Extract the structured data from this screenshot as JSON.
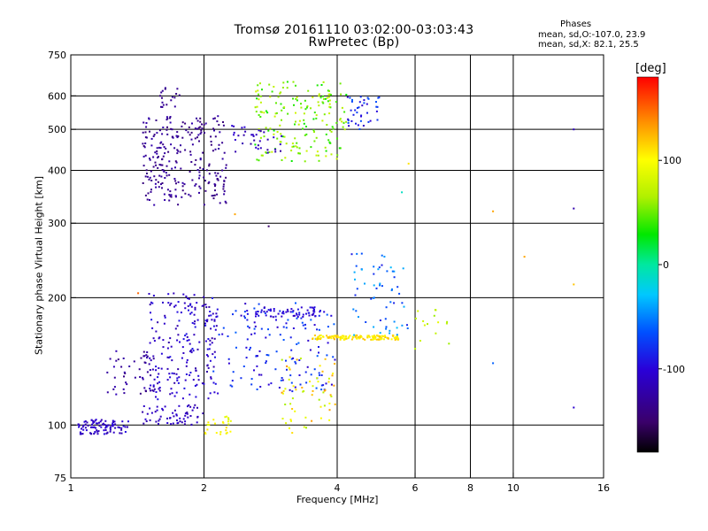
{
  "header": {
    "title_line1": "Tromsø 20161110 03:02:00-03:03:43",
    "title_line2": "RwPretec (Bp)",
    "phase_stats_title": "Phases",
    "phase_stats_o": "mean, sd,O:-107.0, 23.9",
    "phase_stats_x": "mean, sd,X:  82.1, 25.5"
  },
  "colorbar": {
    "unit_label": "[deg]",
    "min": -180,
    "max": 180,
    "ticks": [
      {
        "value": 100,
        "label": "100"
      },
      {
        "value": 0,
        "label": "0"
      },
      {
        "value": -100,
        "label": "-100"
      }
    ]
  },
  "chart_data": {
    "type": "scatter",
    "title": "Tromsø 20161110 03:02:00-03:03:43",
    "subtitle": "RwPretec (Bp)",
    "xlabel": "Frequency [MHz]",
    "ylabel": "Stationary phase Virtual Height [km]",
    "x_scale": "log",
    "y_scale": "log",
    "xlim": [
      1,
      16
    ],
    "ylim": [
      75,
      750
    ],
    "x_ticks": [
      {
        "value": 1,
        "label": "1"
      },
      {
        "value": 2,
        "label": "2"
      },
      {
        "value": 4,
        "label": "4"
      },
      {
        "value": 6,
        "label": "6"
      },
      {
        "value": 8,
        "label": "8"
      },
      {
        "value": 10,
        "label": "10"
      },
      {
        "value": 16,
        "label": "16"
      }
    ],
    "y_ticks": [
      {
        "value": 75,
        "label": "75"
      },
      {
        "value": 100,
        "label": "100"
      },
      {
        "value": 200,
        "label": "200"
      },
      {
        "value": 300,
        "label": "300"
      },
      {
        "value": 400,
        "label": "400"
      },
      {
        "value": 500,
        "label": "500"
      },
      {
        "value": 600,
        "label": "600"
      },
      {
        "value": 750,
        "label": "750"
      }
    ],
    "x_grid": [
      2,
      4,
      6,
      8,
      10
    ],
    "y_grid": [
      100,
      200,
      300,
      400,
      500,
      600
    ],
    "color_variable": "phase [deg]",
    "clusters": [
      {
        "x_range": [
          1.04,
          1.35
        ],
        "y_range": [
          95,
          103
        ],
        "phase_range": [
          -120,
          -95
        ],
        "n": 90
      },
      {
        "x_range": [
          1.2,
          1.6
        ],
        "y_range": [
          118,
          150
        ],
        "phase_range": [
          -140,
          -115
        ],
        "n": 50
      },
      {
        "x_range": [
          1.45,
          2.0
        ],
        "y_range": [
          100,
          112
        ],
        "phase_range": [
          -125,
          -100
        ],
        "n": 60
      },
      {
        "x_range": [
          1.5,
          2.15
        ],
        "y_range": [
          115,
          205
        ],
        "phase_range": [
          -125,
          -90
        ],
        "n": 200
      },
      {
        "x_range": [
          1.45,
          2.25
        ],
        "y_range": [
          330,
          540
        ],
        "phase_range": [
          -145,
          -120
        ],
        "n": 260
      },
      {
        "x_range": [
          1.55,
          1.8
        ],
        "y_range": [
          560,
          640
        ],
        "phase_range": [
          -140,
          -125
        ],
        "n": 18
      },
      {
        "x_range": [
          2.1,
          4.0
        ],
        "y_range": [
          120,
          195
        ],
        "phase_range": [
          -110,
          -60
        ],
        "n": 150
      },
      {
        "x_range": [
          2.5,
          3.6
        ],
        "y_range": [
          180,
          190
        ],
        "phase_range": [
          -115,
          -90
        ],
        "n": 60
      },
      {
        "x_range": [
          3.0,
          4.0
        ],
        "y_range": [
          95,
          145
        ],
        "phase_range": [
          60,
          140
        ],
        "n": 60
      },
      {
        "x_range": [
          2.0,
          2.3
        ],
        "y_range": [
          95,
          105
        ],
        "phase_range": [
          80,
          110
        ],
        "n": 25
      },
      {
        "x_range": [
          3.5,
          5.5
        ],
        "y_range": [
          159,
          163
        ],
        "phase_range": [
          95,
          125
        ],
        "n": 140
      },
      {
        "x_range": [
          2.6,
          4.2
        ],
        "y_range": [
          420,
          650
        ],
        "phase_range": [
          30,
          80
        ],
        "n": 190
      },
      {
        "x_range": [
          2.3,
          3.0
        ],
        "y_range": [
          440,
          510
        ],
        "phase_range": [
          -130,
          -100
        ],
        "n": 35
      },
      {
        "x_range": [
          4.2,
          5.0
        ],
        "y_range": [
          500,
          600
        ],
        "phase_range": [
          -110,
          -60
        ],
        "n": 40
      },
      {
        "x_range": [
          4.3,
          5.8
        ],
        "y_range": [
          160,
          260
        ],
        "phase_range": [
          -90,
          -30
        ],
        "n": 60
      },
      {
        "x_range": [
          6.0,
          7.2
        ],
        "y_range": [
          150,
          190
        ],
        "phase_range": [
          60,
          90
        ],
        "n": 15
      }
    ],
    "isolated_points": [
      {
        "x": 13.7,
        "y": 500,
        "phase": -110
      },
      {
        "x": 13.7,
        "y": 325,
        "phase": -120
      },
      {
        "x": 13.7,
        "y": 110,
        "phase": -105
      },
      {
        "x": 13.7,
        "y": 215,
        "phase": 120
      },
      {
        "x": 9.0,
        "y": 320,
        "phase": 130
      },
      {
        "x": 10.6,
        "y": 250,
        "phase": 130
      },
      {
        "x": 9.0,
        "y": 140,
        "phase": -60
      },
      {
        "x": 1.42,
        "y": 205,
        "phase": 150
      },
      {
        "x": 2.35,
        "y": 315,
        "phase": 130
      },
      {
        "x": 5.8,
        "y": 415,
        "phase": 110
      },
      {
        "x": 5.6,
        "y": 355,
        "phase": -10
      },
      {
        "x": 2.8,
        "y": 295,
        "phase": -150
      }
    ]
  }
}
